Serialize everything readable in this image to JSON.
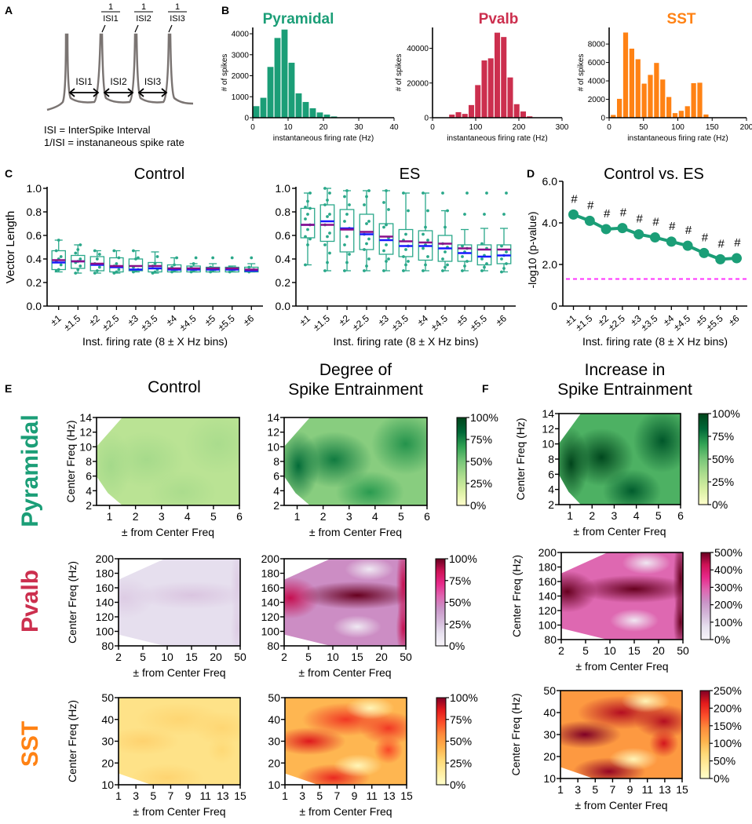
{
  "panel_labels": {
    "A": "A",
    "B": "B",
    "C": "C",
    "D": "D",
    "E": "E",
    "F": "F"
  },
  "colors": {
    "pyramidal": "#1b9e77",
    "pvalb": "#cc2f4e",
    "sst": "#ff8214",
    "box": "#2aa88a",
    "mean_line": "#8a0f8a",
    "median_line": "#1a1aff",
    "threshold": "#ff33ff",
    "trace": "#7a7472"
  },
  "panel_a": {
    "isi_labels": [
      "ISI1",
      "ISI2",
      "ISI3"
    ],
    "rate_numerator": "1",
    "rate_labels": [
      "ISI1",
      "ISI2",
      "ISI3"
    ],
    "caption_line1": "ISI = InterSpike Interval",
    "caption_line2": "1/ISI = instananeous spike rate"
  },
  "chart_data": [
    {
      "id": "hist-pyramidal",
      "type": "bar",
      "title": "Pyramidal",
      "color_key": "pyramidal",
      "xlabel": "instantaneous firing rate (Hz)",
      "ylabel": "# of spikes",
      "xlim": [
        0,
        40
      ],
      "ylim": [
        0,
        4300
      ],
      "bin_width": 2,
      "xticks": [
        0,
        10,
        20,
        30,
        40
      ],
      "yticks": [
        0,
        1000,
        2000,
        3000,
        4000
      ],
      "x": [
        1,
        3,
        5,
        7,
        9,
        11,
        13,
        15,
        17,
        19,
        21,
        23
      ],
      "values": [
        550,
        950,
        2420,
        3800,
        4200,
        2620,
        1160,
        750,
        450,
        250,
        150,
        60
      ]
    },
    {
      "id": "hist-pvalb",
      "type": "bar",
      "title": "Pvalb",
      "color_key": "pvalb",
      "xlabel": "instantaneous firing rate (Hz)",
      "ylabel": "# of spikes",
      "xlim": [
        0,
        300
      ],
      "ylim": [
        0,
        52000
      ],
      "bin_width": 15,
      "xticks": [
        0,
        100,
        200,
        300
      ],
      "yticks": [
        0,
        20000,
        40000
      ],
      "x": [
        45,
        60,
        75,
        90,
        105,
        120,
        135,
        150,
        165,
        180,
        195,
        210,
        225
      ],
      "values": [
        1800,
        3200,
        2200,
        7300,
        18800,
        33000,
        34200,
        49000,
        46500,
        23200,
        7800,
        3600,
        800
      ]
    },
    {
      "id": "hist-sst",
      "type": "bar",
      "title": "SST",
      "color_key": "sst",
      "xlabel": "instantaneous firing rate (Hz)",
      "ylabel": "# of spikes",
      "xlim": [
        0,
        200
      ],
      "ylim": [
        0,
        9800
      ],
      "bin_width": 8.5,
      "xticks": [
        0,
        50,
        100,
        150,
        200
      ],
      "yticks": [
        0,
        2000,
        4000,
        6000,
        8000
      ],
      "x": [
        6,
        15,
        24,
        33,
        42,
        51,
        60,
        69,
        78,
        87,
        96,
        105,
        114,
        123,
        132,
        141,
        150
      ],
      "values": [
        300,
        2050,
        9250,
        7500,
        6350,
        3700,
        4650,
        5950,
        4150,
        2250,
        500,
        750,
        1250,
        3750,
        3800,
        350,
        0
      ]
    },
    {
      "id": "box-control",
      "type": "box",
      "title": "Control",
      "xlabel": "Inst. firing rate (8 ± X Hz bins)",
      "ylabel": "Vector Length",
      "ylim": [
        0,
        1.0
      ],
      "yticks": [
        "0.0",
        "0.2",
        "0.4",
        "0.6",
        "0.8",
        "1.0"
      ],
      "categories": [
        "±1",
        "±1.5",
        "±2",
        "±2.5",
        "±3",
        "±3.5",
        "±4",
        "±4.5",
        "±5",
        "±5.5",
        "±6"
      ],
      "boxes": [
        {
          "min": 0.29,
          "q1": 0.31,
          "median": 0.37,
          "mean": 0.39,
          "q3": 0.47,
          "max": 0.56,
          "points": [
            0.3,
            0.31,
            0.35,
            0.38,
            0.4,
            0.42,
            0.47,
            0.56
          ]
        },
        {
          "min": 0.28,
          "q1": 0.32,
          "median": 0.38,
          "mean": 0.38,
          "q3": 0.43,
          "max": 0.52,
          "points": [
            0.28,
            0.31,
            0.34,
            0.37,
            0.38,
            0.4,
            0.45,
            0.48,
            0.52
          ]
        },
        {
          "min": 0.28,
          "q1": 0.3,
          "median": 0.35,
          "mean": 0.36,
          "q3": 0.42,
          "max": 0.47,
          "points": [
            0.28,
            0.3,
            0.33,
            0.36,
            0.4,
            0.44,
            0.47
          ]
        },
        {
          "min": 0.28,
          "q1": 0.29,
          "median": 0.33,
          "mean": 0.34,
          "q3": 0.41,
          "max": 0.47,
          "points": [
            0.28,
            0.29,
            0.31,
            0.34,
            0.36,
            0.41,
            0.47
          ]
        },
        {
          "min": 0.29,
          "q1": 0.3,
          "median": 0.31,
          "mean": 0.34,
          "q3": 0.4,
          "max": 0.47,
          "points": [
            0.29,
            0.3,
            0.31,
            0.33,
            0.4,
            0.41,
            0.47
          ]
        },
        {
          "min": 0.28,
          "q1": 0.29,
          "median": 0.32,
          "mean": 0.34,
          "q3": 0.37,
          "max": 0.46,
          "points": [
            0.28,
            0.29,
            0.31,
            0.34,
            0.36,
            0.42
          ]
        },
        {
          "min": 0.29,
          "q1": 0.29,
          "median": 0.31,
          "mean": 0.32,
          "q3": 0.35,
          "max": 0.41,
          "points": [
            0.29,
            0.3,
            0.31,
            0.33,
            0.35,
            0.41
          ]
        },
        {
          "min": 0.29,
          "q1": 0.29,
          "median": 0.31,
          "mean": 0.32,
          "q3": 0.34,
          "max": 0.36,
          "points": [
            0.29,
            0.3,
            0.31,
            0.33,
            0.36,
            0.41
          ]
        },
        {
          "min": 0.29,
          "q1": 0.29,
          "median": 0.31,
          "mean": 0.32,
          "q3": 0.33,
          "max": 0.36,
          "points": [
            0.29,
            0.3,
            0.31,
            0.33,
            0.41
          ]
        },
        {
          "min": 0.29,
          "q1": 0.29,
          "median": 0.31,
          "mean": 0.32,
          "q3": 0.33,
          "max": 0.34,
          "points": [
            0.29,
            0.3,
            0.31,
            0.33,
            0.41
          ]
        },
        {
          "min": 0.29,
          "q1": 0.29,
          "median": 0.3,
          "mean": 0.31,
          "q3": 0.33,
          "max": 0.36,
          "points": [
            0.29,
            0.3,
            0.31,
            0.33,
            0.41
          ]
        }
      ]
    },
    {
      "id": "box-es",
      "type": "box",
      "title": "ES",
      "xlabel": "Inst. firing rate (8 ± X Hz bins)",
      "ylabel": "",
      "ylim": [
        0,
        1.0
      ],
      "yticks": [
        "0.0",
        "0.2",
        "0.4",
        "0.6",
        "0.8",
        "1.0"
      ],
      "categories": [
        "±1",
        "±1.5",
        "±2",
        "±2.5",
        "±3",
        "±3.5",
        "±4",
        "±4.5",
        "±5",
        "±5.5",
        "±6"
      ],
      "boxes": [
        {
          "min": 0.35,
          "q1": 0.58,
          "median": 0.69,
          "mean": 0.69,
          "q3": 0.83,
          "max": 0.96,
          "points": [
            0.35,
            0.52,
            0.57,
            0.59,
            0.65,
            0.69,
            0.74,
            0.78,
            0.83,
            0.84,
            0.89,
            0.96
          ]
        },
        {
          "min": 0.3,
          "q1": 0.55,
          "median": 0.72,
          "mean": 0.69,
          "q3": 0.86,
          "max": 1.0,
          "points": [
            0.3,
            0.37,
            0.45,
            0.52,
            0.59,
            0.62,
            0.69,
            0.76,
            0.78,
            0.86,
            0.9,
            0.96,
            1.0
          ]
        },
        {
          "min": 0.3,
          "q1": 0.46,
          "median": 0.66,
          "mean": 0.65,
          "q3": 0.82,
          "max": 0.98,
          "points": [
            0.3,
            0.37,
            0.44,
            0.52,
            0.59,
            0.66,
            0.72,
            0.78,
            0.86,
            0.93,
            0.98
          ]
        },
        {
          "min": 0.3,
          "q1": 0.48,
          "median": 0.61,
          "mean": 0.63,
          "q3": 0.78,
          "max": 0.98,
          "points": [
            0.3,
            0.34,
            0.4,
            0.48,
            0.53,
            0.57,
            0.61,
            0.7,
            0.72,
            0.86,
            0.93,
            0.98
          ]
        },
        {
          "min": 0.3,
          "q1": 0.44,
          "median": 0.56,
          "mean": 0.59,
          "q3": 0.7,
          "max": 0.98,
          "points": [
            0.3,
            0.38,
            0.4,
            0.47,
            0.52,
            0.58,
            0.67,
            0.69,
            0.82,
            0.88,
            0.98
          ]
        },
        {
          "min": 0.3,
          "q1": 0.42,
          "median": 0.51,
          "mean": 0.55,
          "q3": 0.65,
          "max": 0.96,
          "points": [
            0.3,
            0.35,
            0.38,
            0.42,
            0.48,
            0.51,
            0.56,
            0.61,
            0.81,
            0.96
          ]
        },
        {
          "min": 0.3,
          "q1": 0.39,
          "median": 0.51,
          "mean": 0.54,
          "q3": 0.64,
          "max": 0.96,
          "points": [
            0.3,
            0.35,
            0.42,
            0.49,
            0.52,
            0.56,
            0.61,
            0.67,
            0.81,
            0.96
          ]
        },
        {
          "min": 0.3,
          "q1": 0.38,
          "median": 0.49,
          "mean": 0.53,
          "q3": 0.6,
          "max": 0.81,
          "points": [
            0.3,
            0.33,
            0.35,
            0.4,
            0.46,
            0.5,
            0.53,
            0.67,
            0.81,
            0.96
          ]
        },
        {
          "min": 0.3,
          "q1": 0.38,
          "median": 0.45,
          "mean": 0.49,
          "q3": 0.52,
          "max": 0.65,
          "points": [
            0.3,
            0.34,
            0.38,
            0.42,
            0.46,
            0.49,
            0.51,
            0.78,
            0.96
          ]
        },
        {
          "min": 0.3,
          "q1": 0.35,
          "median": 0.42,
          "mean": 0.48,
          "q3": 0.52,
          "max": 0.66,
          "points": [
            0.3,
            0.33,
            0.36,
            0.4,
            0.43,
            0.49,
            0.53,
            0.78,
            0.96
          ]
        },
        {
          "min": 0.29,
          "q1": 0.36,
          "median": 0.43,
          "mean": 0.48,
          "q3": 0.52,
          "max": 0.66,
          "points": [
            0.29,
            0.32,
            0.36,
            0.4,
            0.43,
            0.46,
            0.51,
            0.78,
            0.96
          ]
        }
      ]
    },
    {
      "id": "line-pvalue",
      "type": "line",
      "title": "Control vs. ES",
      "xlabel": "Inst. firing rate (8 ± X Hz bins)",
      "ylabel": "-log10 (p-value)",
      "ylim": [
        0,
        6.0
      ],
      "yticks": [
        "0",
        "2.0",
        "4.0",
        "6.0"
      ],
      "categories": [
        "±1",
        "±1.5",
        "±2",
        "±2.5",
        "±3",
        "±3.5",
        "±4",
        "±4.5",
        "±5",
        "±5.5",
        "±6"
      ],
      "values": [
        4.4,
        4.1,
        3.7,
        3.75,
        3.45,
        3.3,
        3.1,
        2.9,
        2.55,
        2.25,
        2.3
      ],
      "annotation": "#",
      "threshold": 1.3
    },
    {
      "id": "heat-pyr-control",
      "type": "heatmap",
      "title": "Control",
      "cell": "Pyramidal",
      "cmap": "green",
      "xlabel": "± from Center Freq",
      "ylabel": "Center Freq (Hz)",
      "xticks": [
        "1",
        "2",
        "3",
        "4",
        "5",
        "6"
      ],
      "yticks": [
        "2",
        "4",
        "6",
        "8",
        "10",
        "12",
        "14"
      ],
      "colorbar": null,
      "intensity": 0.38
    },
    {
      "id": "heat-pyr-es",
      "type": "heatmap",
      "title": "Degree of Spike Entrainment",
      "cell": "Pyramidal",
      "cmap": "green",
      "xlabel": "± from Center Freq",
      "ylabel": "",
      "xticks": [
        "1",
        "2",
        "3",
        "4",
        "5",
        "6"
      ],
      "yticks": [
        "2",
        "4",
        "6",
        "8",
        "10",
        "12",
        "14"
      ],
      "colorbar": [
        "100%",
        "75%",
        "50%",
        "25%",
        "0%"
      ],
      "intensity": 0.6
    },
    {
      "id": "heat-pyr-increase",
      "type": "heatmap",
      "title": "Increase in Spike Entrainment",
      "cell": "Pyramidal",
      "cmap": "green",
      "xlabel": "± from Center Freq",
      "ylabel": "Center Freq (Hz)",
      "xticks": [
        "1",
        "2",
        "3",
        "4",
        "5",
        "6"
      ],
      "yticks": [
        "2",
        "4",
        "6",
        "8",
        "10",
        "12",
        "14"
      ],
      "colorbar": [
        "100%",
        "75%",
        "50%",
        "25%",
        "0%"
      ],
      "intensity": 0.8
    },
    {
      "id": "heat-pv-control",
      "type": "heatmap",
      "title": "",
      "cell": "Pvalb",
      "cmap": "pink",
      "xlabel": "± from Center Freq",
      "ylabel": "Center Freq (Hz)",
      "xticks": [
        "2",
        "5",
        "10",
        "15",
        "20",
        "50"
      ],
      "yticks": [
        "80",
        "100",
        "120",
        "140",
        "160",
        "180",
        "200"
      ],
      "colorbar": null,
      "intensity": 0.2
    },
    {
      "id": "heat-pv-es",
      "type": "heatmap",
      "title": "",
      "cell": "Pvalb",
      "cmap": "pink",
      "xlabel": "± from Center Freq",
      "ylabel": "",
      "xticks": [
        "2",
        "5",
        "10",
        "15",
        "20",
        "50"
      ],
      "yticks": [
        "80",
        "100",
        "120",
        "140",
        "160",
        "180",
        "200"
      ],
      "colorbar": [
        "100%",
        "75%",
        "50%",
        "25%",
        "0%"
      ],
      "intensity": 0.6
    },
    {
      "id": "heat-pv-increase",
      "type": "heatmap",
      "title": "",
      "cell": "Pvalb",
      "cmap": "pink",
      "xlabel": "± from Center Freq",
      "ylabel": "Center Freq (Hz)",
      "xticks": [
        "2",
        "5",
        "10",
        "15",
        "20",
        "50"
      ],
      "yticks": [
        "80",
        "100",
        "120",
        "140",
        "160",
        "180",
        "200"
      ],
      "colorbar": [
        "500%",
        "400%",
        "300%",
        "200%",
        "100%",
        "0%"
      ],
      "intensity": 0.75
    },
    {
      "id": "heat-sst-control",
      "type": "heatmap",
      "title": "",
      "cell": "SST",
      "cmap": "orange",
      "xlabel": "± from Center Freq",
      "ylabel": "Center Freq (Hz)",
      "xticks": [
        "1",
        "3",
        "5",
        "7",
        "9",
        "11",
        "13",
        "15"
      ],
      "yticks": [
        "10",
        "20",
        "30",
        "40",
        "50"
      ],
      "colorbar": null,
      "intensity": 0.3
    },
    {
      "id": "heat-sst-es",
      "type": "heatmap",
      "title": "",
      "cell": "SST",
      "cmap": "orange",
      "xlabel": "± from Center Freq",
      "ylabel": "",
      "xticks": [
        "1",
        "3",
        "5",
        "7",
        "9",
        "11",
        "13",
        "15"
      ],
      "yticks": [
        "10",
        "20",
        "30",
        "40",
        "50"
      ],
      "colorbar": [
        "100%",
        "75%",
        "50%",
        "25%",
        "0%"
      ],
      "intensity": 0.55
    },
    {
      "id": "heat-sst-increase",
      "type": "heatmap",
      "title": "",
      "cell": "SST",
      "cmap": "orange",
      "xlabel": "± from Center Freq",
      "ylabel": "Center Freq (Hz)",
      "xticks": [
        "1",
        "3",
        "5",
        "7",
        "9",
        "11",
        "13",
        "15"
      ],
      "yticks": [
        "10",
        "20",
        "30",
        "40",
        "50"
      ],
      "colorbar": [
        "250%",
        "200%",
        "150%",
        "100%",
        "50%",
        "0%"
      ],
      "intensity": 0.7
    }
  ],
  "row_labels": [
    "Pyramidal",
    "Pvalb",
    "SST"
  ],
  "e_headers": {
    "control": "Control",
    "es_line1": "Degree of",
    "es_line2": "Spike Entrainment"
  },
  "f_header": {
    "line1": "Increase in",
    "line2": "Spike Entrainment"
  }
}
